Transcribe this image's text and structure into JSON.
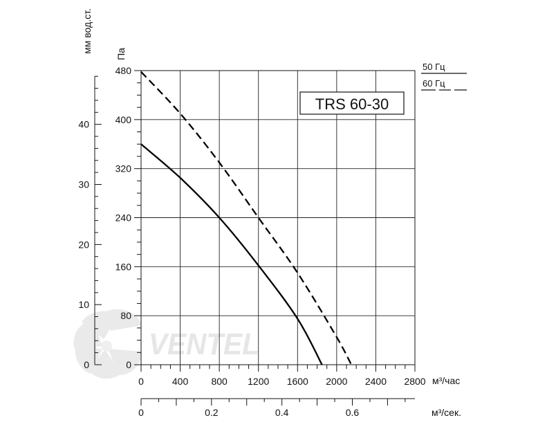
{
  "chart_data": {
    "type": "line",
    "title": "TRS 60-30",
    "y_label_pa": "Па",
    "y_label_mm": "мм вод.ст.",
    "x_label_m3h": "м³/час",
    "x_label_m3s": "м³/сек.",
    "x_ticks_m3h": [
      "0",
      "400",
      "800",
      "1200",
      "1600",
      "2000",
      "2400",
      "2800"
    ],
    "x_ticks_m3s": [
      "0",
      "0.2",
      "0.4",
      "0.6"
    ],
    "y_ticks_pa": [
      "0",
      "80",
      "160",
      "240",
      "320",
      "400",
      "480"
    ],
    "y_ticks_mm": [
      "0",
      "10",
      "20",
      "30",
      "40"
    ],
    "xlim": [
      0,
      2800
    ],
    "ylim": [
      0,
      480
    ],
    "legend": [
      {
        "label": "50 Гц",
        "style": "solid"
      },
      {
        "label": "60 Гц",
        "style": "dashed"
      }
    ],
    "series": [
      {
        "name": "50 Гц",
        "style": "solid",
        "x": [
          0,
          400,
          800,
          1200,
          1600,
          1850
        ],
        "y": [
          360,
          305,
          240,
          162,
          75,
          0
        ]
      },
      {
        "name": "60 Гц",
        "style": "dashed",
        "x": [
          0,
          400,
          800,
          1200,
          1600,
          2000,
          2150
        ],
        "y": [
          478,
          410,
          330,
          240,
          150,
          45,
          0
        ]
      }
    ]
  },
  "watermark": "VENTEL"
}
